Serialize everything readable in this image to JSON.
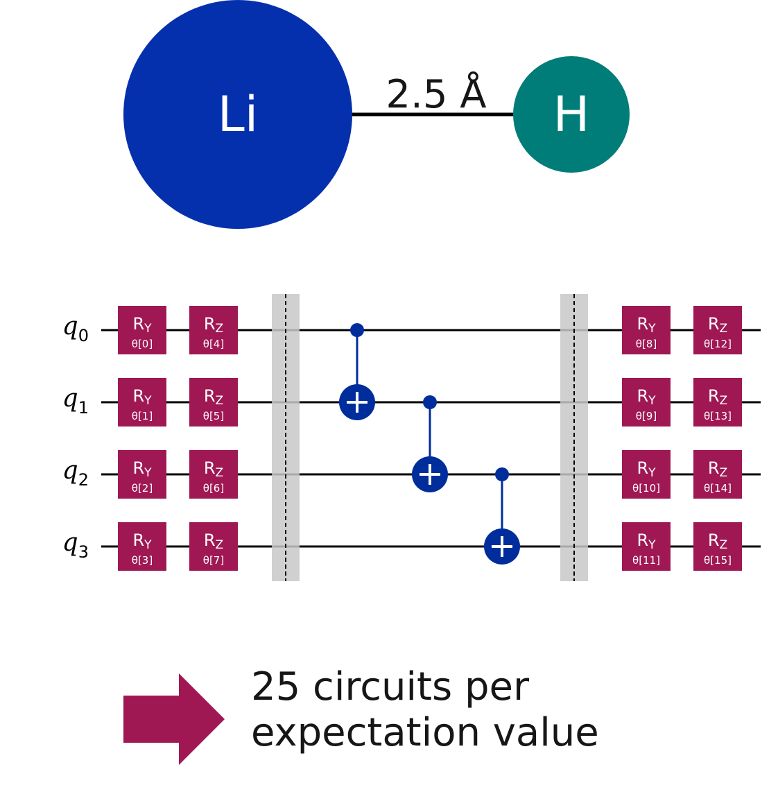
{
  "colors": {
    "lithium": "#0530ad",
    "hydrogen": "#007d79",
    "rotation_gate": "#9f1853",
    "cnot": "#002d9c",
    "barrier": "#c8c8c8",
    "wire": "#000000",
    "text": "#161616"
  },
  "molecule": {
    "atom_left": "Li",
    "atom_right": "H",
    "bond_length": "2.5 Å"
  },
  "circuit": {
    "qubits": [
      {
        "base": "q",
        "index": "0"
      },
      {
        "base": "q",
        "index": "1"
      },
      {
        "base": "q",
        "index": "2"
      },
      {
        "base": "q",
        "index": "3"
      }
    ],
    "rotation_layers": [
      [
        [
          {
            "axis": "Y",
            "param": "θ[0]"
          },
          {
            "axis": "Z",
            "param": "θ[4]"
          }
        ],
        [
          {
            "axis": "Y",
            "param": "θ[1]"
          },
          {
            "axis": "Z",
            "param": "θ[5]"
          }
        ],
        [
          {
            "axis": "Y",
            "param": "θ[2]"
          },
          {
            "axis": "Z",
            "param": "θ[6]"
          }
        ],
        [
          {
            "axis": "Y",
            "param": "θ[3]"
          },
          {
            "axis": "Z",
            "param": "θ[7]"
          }
        ]
      ],
      [
        [
          {
            "axis": "Y",
            "param": "θ[8]"
          },
          {
            "axis": "Z",
            "param": "θ[12]"
          }
        ],
        [
          {
            "axis": "Y",
            "param": "θ[9]"
          },
          {
            "axis": "Z",
            "param": "θ[13]"
          }
        ],
        [
          {
            "axis": "Y",
            "param": "θ[10]"
          },
          {
            "axis": "Z",
            "param": "θ[14]"
          }
        ],
        [
          {
            "axis": "Y",
            "param": "θ[11]"
          },
          {
            "axis": "Z",
            "param": "θ[15]"
          }
        ]
      ]
    ],
    "gate_prefix": "R",
    "cnots": [
      {
        "control": 0,
        "target": 1
      },
      {
        "control": 1,
        "target": 2
      },
      {
        "control": 2,
        "target": 3
      }
    ],
    "barriers": 2
  },
  "caption": {
    "line1": "25 circuits per",
    "line2": "expectation value"
  }
}
